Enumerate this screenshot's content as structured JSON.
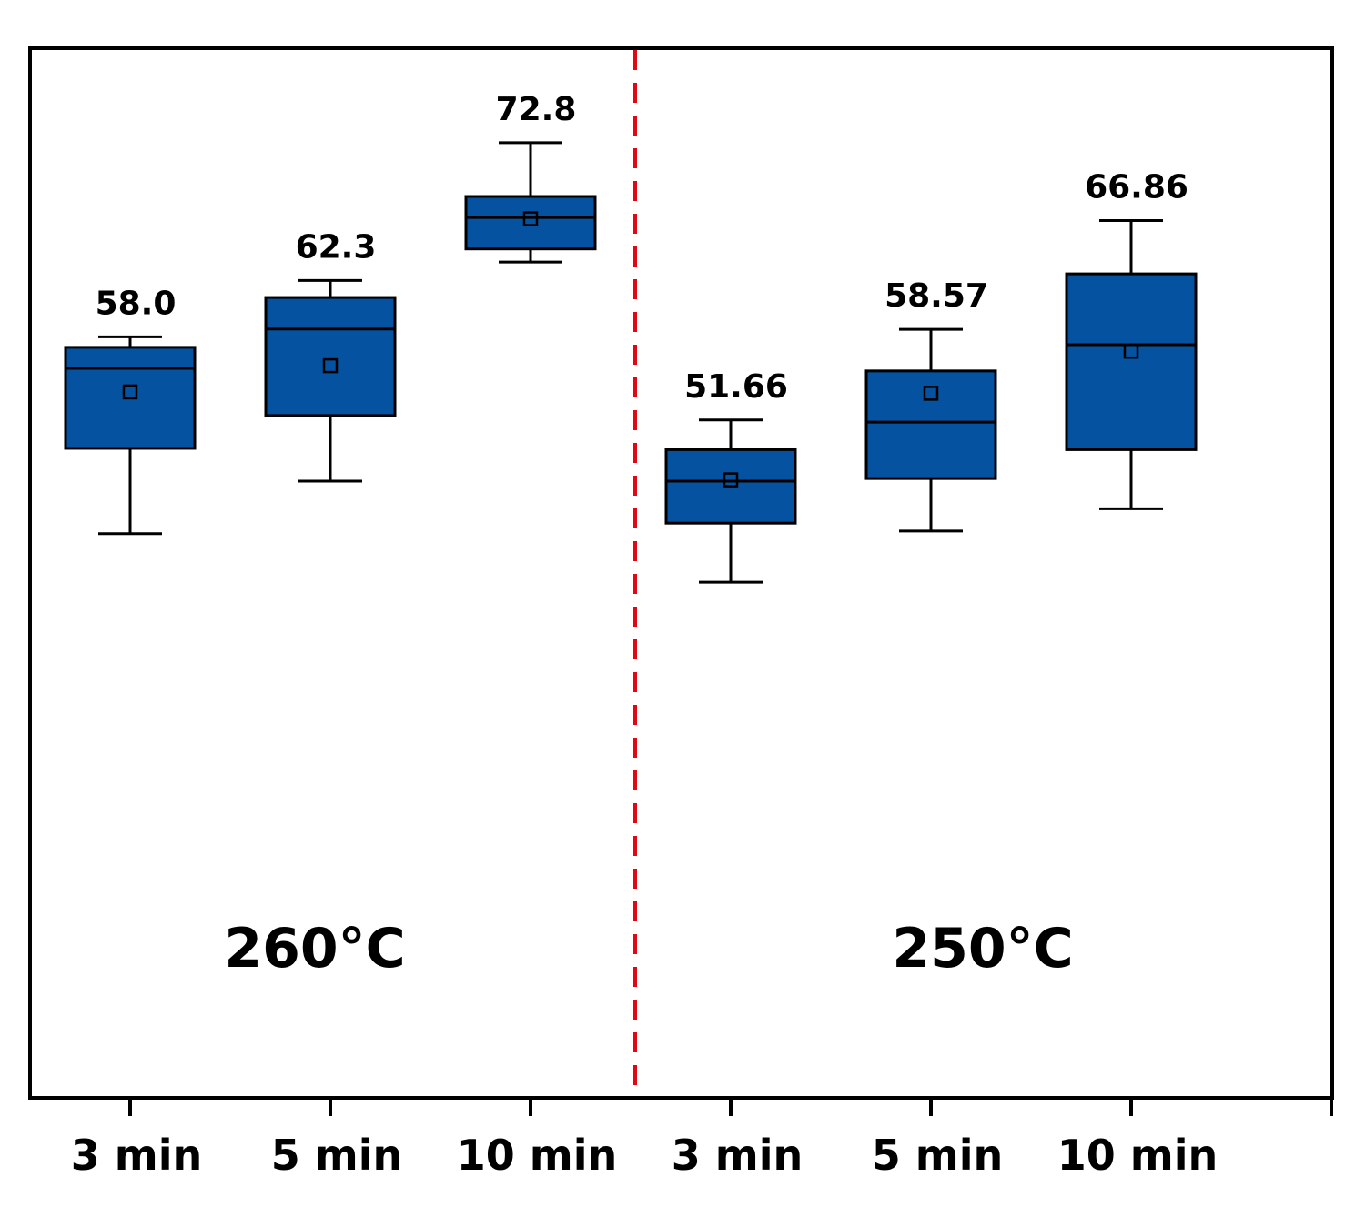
{
  "chart_data": {
    "type": "box",
    "categories": [
      "3 min",
      "5 min",
      "10 min",
      "3 min",
      "5 min",
      "10 min"
    ],
    "groups": [
      {
        "label": "260°C",
        "indices": [
          0,
          1,
          2
        ]
      },
      {
        "label": "250°C",
        "indices": [
          3,
          4,
          5
        ]
      }
    ],
    "boxes": [
      {
        "category": "3 min",
        "group": "260°C",
        "max": 58.0,
        "q3": 57.2,
        "median": 55.6,
        "mean": 53.8,
        "q1": 49.5,
        "min": 43.0,
        "label": "58.0"
      },
      {
        "category": "5 min",
        "group": "260°C",
        "max": 62.3,
        "q3": 61.0,
        "median": 58.6,
        "mean": 55.8,
        "q1": 52.0,
        "min": 47.0,
        "label": "62.3"
      },
      {
        "category": "10 min",
        "group": "260°C",
        "max": 72.8,
        "q3": 68.7,
        "median": 67.1,
        "mean": 67.0,
        "q1": 64.7,
        "min": 63.7,
        "label": "72.8"
      },
      {
        "category": "3 min",
        "group": "250°C",
        "max": 51.66,
        "q3": 49.4,
        "median": 47.0,
        "mean": 47.1,
        "q1": 43.8,
        "min": 39.3,
        "label": "51.66"
      },
      {
        "category": "5 min",
        "group": "250°C",
        "max": 58.57,
        "q3": 55.4,
        "median": 51.5,
        "mean": 53.7,
        "q1": 47.2,
        "min": 43.2,
        "label": "58.57"
      },
      {
        "category": "10 min",
        "group": "250°C",
        "max": 66.86,
        "q3": 62.8,
        "median": 57.4,
        "mean": 56.9,
        "q1": 49.4,
        "min": 44.9,
        "label": "66.86"
      }
    ],
    "ylim": [
      0,
      80
    ],
    "divider_color": "#e30613",
    "box_color": "#0452a0",
    "grid": false,
    "legend": "none"
  }
}
